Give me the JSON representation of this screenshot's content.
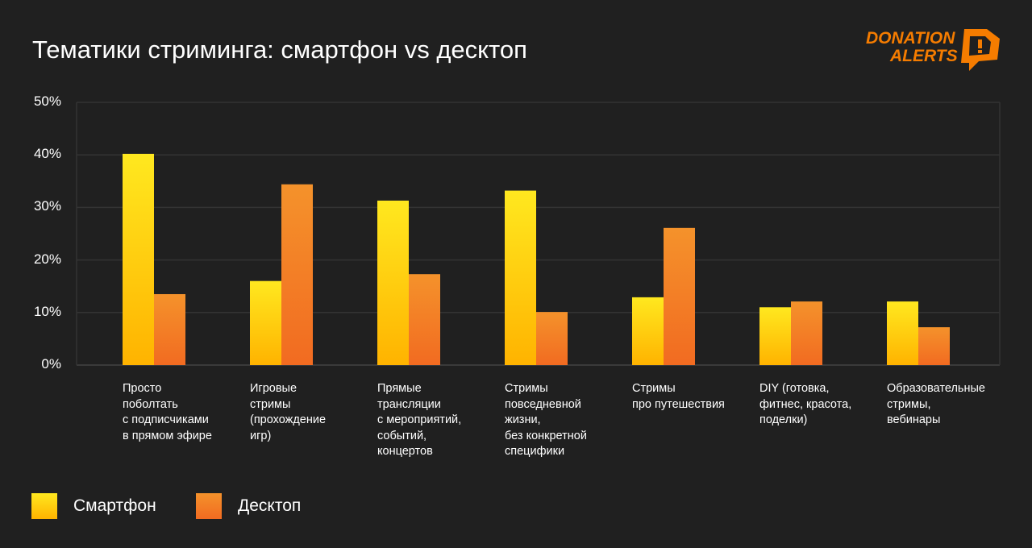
{
  "title": "Тематики стриминга: смартфон vs десктоп",
  "logo": {
    "line1": "DONATION",
    "line2": "ALERTS",
    "color": "#F57C00"
  },
  "chart_data": {
    "type": "bar",
    "title": "Тематики стриминга: смартфон vs десктоп",
    "categories": [
      "Просто поболтать с подписчиками в прямом эфире",
      "Игровые стримы (прохождение игр)",
      "Прямые трансляции с мероприятий, событий, концертов",
      "Стримы повседневной жизни, без конкретной специфики",
      "Стримы про путешествия",
      "DIY (готовка, фитнес, красота, поделки)",
      "Образовательные стримы, вебинары"
    ],
    "category_lines": [
      [
        "Просто",
        "поболтать",
        "с подписчиками",
        "в прямом эфире"
      ],
      [
        "Игровые",
        "стримы",
        "(прохождение",
        "игр)"
      ],
      [
        "Прямые",
        "трансляции",
        "с мероприятий,",
        "событий,",
        "концертов"
      ],
      [
        "Стримы",
        "повседневной",
        "жизни,",
        "без конкретной",
        "специфики"
      ],
      [
        "Стримы",
        "про путешествия"
      ],
      [
        "DIY (готовка,",
        "фитнес, красота,",
        "поделки)"
      ],
      [
        "Образовательные",
        "стримы,",
        "вебинары"
      ]
    ],
    "series": [
      {
        "name": "Смартфон",
        "values": [
          40.2,
          16,
          31.3,
          33.2,
          12.9,
          11,
          12.1
        ],
        "colors": [
          "#FFE81F",
          "#FFB300"
        ]
      },
      {
        "name": "Десктоп",
        "values": [
          13.5,
          34.4,
          17.3,
          10.1,
          26.1,
          12.1,
          7.2
        ],
        "colors": [
          "#F4922B",
          "#F26B21"
        ]
      }
    ],
    "yticks": [
      "0%",
      "10%",
      "20%",
      "30%",
      "40%",
      "50%"
    ],
    "ylim": [
      0,
      50
    ],
    "grid": true,
    "legend": "bottom-left"
  }
}
